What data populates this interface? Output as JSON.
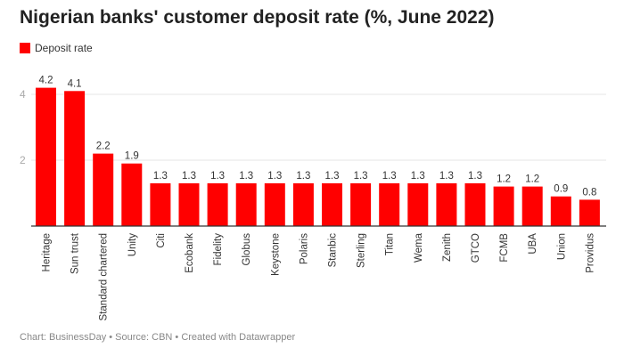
{
  "chart_data": {
    "type": "bar",
    "title": "Nigerian banks' customer deposit rate (%, June 2022)",
    "categories": [
      "Heritage",
      "Sun trust",
      "Standard chartered",
      "Unity",
      "Citi",
      "Ecobank",
      "Fidelity",
      "Globus",
      "Keystone",
      "Polaris",
      "Stanbic",
      "Sterling",
      "Titan",
      "Wema",
      "Zenith",
      "GTCO",
      "FCMB",
      "UBA",
      "Union",
      "Providus"
    ],
    "series": [
      {
        "name": "Deposit rate",
        "values": [
          4.2,
          4.1,
          2.2,
          1.9,
          1.3,
          1.3,
          1.3,
          1.3,
          1.3,
          1.3,
          1.3,
          1.3,
          1.3,
          1.3,
          1.3,
          1.3,
          1.2,
          1.2,
          0.9,
          0.8
        ],
        "color": "#ff0000"
      }
    ],
    "yticks": [
      "2",
      "4"
    ],
    "ylim": [
      0,
      4.5
    ],
    "grid": true,
    "legend": "top-left",
    "xlabel": "",
    "ylabel": ""
  },
  "footer": "Chart: BusinessDay • Source: CBN • Created with Datawrapper"
}
